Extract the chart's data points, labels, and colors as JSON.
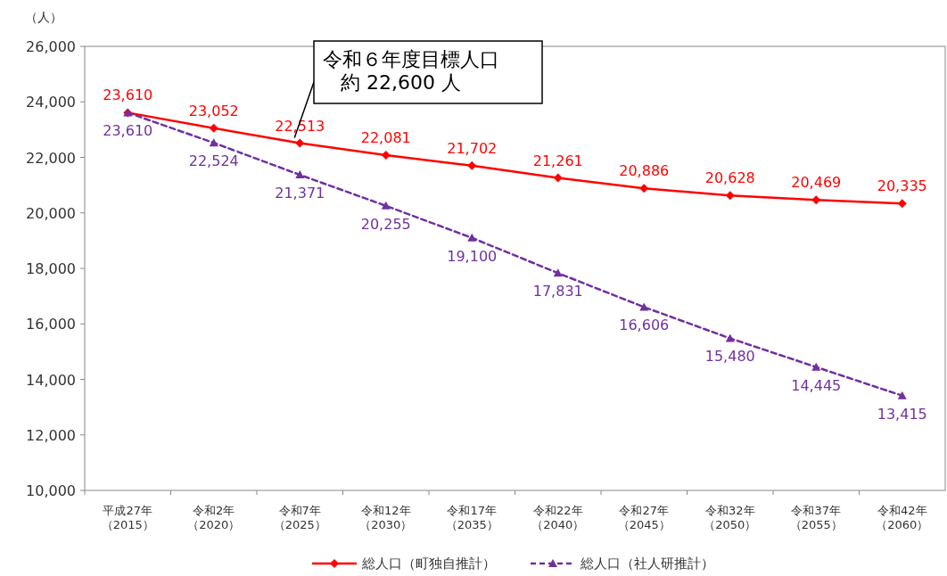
{
  "chart_data": {
    "type": "line",
    "ylabel": "（人）",
    "categories": [
      "平成27年（2015）",
      "令和2年（2020）",
      "令和7年（2025）",
      "令和12年（2030）",
      "令和17年（2035）",
      "令和22年（2040）",
      "令和27年（2045）",
      "令和32年（2050）",
      "令和37年（2055）",
      "令和42年（2060）"
    ],
    "series": [
      {
        "name": "総人口（町独自推計）",
        "color": "#ff0000",
        "marker": "diamond",
        "line_style": "solid",
        "values": [
          23610,
          23052,
          22513,
          22081,
          21702,
          21261,
          20886,
          20628,
          20469,
          20335
        ],
        "value_labels": [
          "23,610",
          "23,052",
          "22,513",
          "22,081",
          "21,702",
          "21,261",
          "20,886",
          "20,628",
          "20,469",
          "20,335"
        ]
      },
      {
        "name": "総人口（社人研推計）",
        "color": "#7030a0",
        "marker": "triangle",
        "line_style": "dashed",
        "values": [
          23610,
          22524,
          21371,
          20255,
          19100,
          17831,
          16606,
          15480,
          14445,
          13415
        ],
        "value_labels": [
          "23,610",
          "22,524",
          "21,371",
          "20,255",
          "19,100",
          "17,831",
          "16,606",
          "15,480",
          "14,445",
          "13,415"
        ]
      }
    ],
    "ylim": [
      10000,
      26000
    ],
    "yticks": [
      {
        "value": 10000,
        "label": "10,000"
      },
      {
        "value": 12000,
        "label": "12,000"
      },
      {
        "value": 14000,
        "label": "14,000"
      },
      {
        "value": 16000,
        "label": "16,000"
      },
      {
        "value": 18000,
        "label": "18,000"
      },
      {
        "value": 20000,
        "label": "20,000"
      },
      {
        "value": 22000,
        "label": "22,000"
      },
      {
        "value": 24000,
        "label": "24,000"
      },
      {
        "value": 26000,
        "label": "26,000"
      }
    ],
    "legend": "bottom",
    "annotations": [
      {
        "text": "令和６年度目標人口約 22,600 人",
        "x": "令和7年（2025）",
        "y": 22513
      }
    ]
  }
}
